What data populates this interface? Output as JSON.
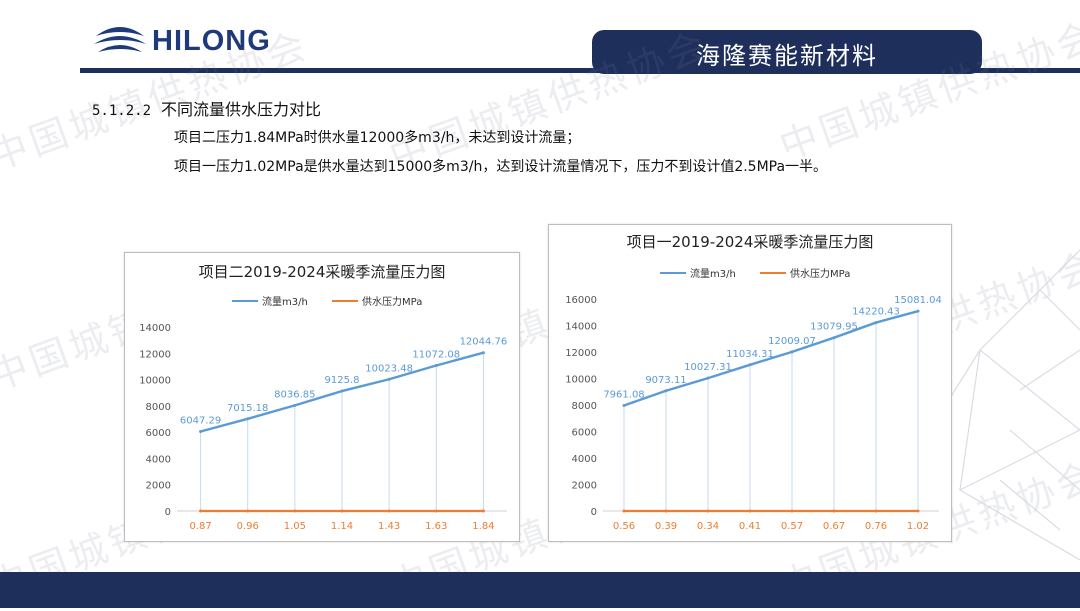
{
  "header": {
    "logo_text": "HILONG",
    "title": "海隆赛能新材料"
  },
  "section": {
    "number": "5.1.2.2",
    "heading": "不同流量供水压力对比",
    "line1": "项目二压力1.84MPa时供水量12000多m3/h，未达到设计流量；",
    "line2": "项目一压力1.02MPa是供水量达到15000多m3/h，达到设计流量情况下，压力不到设计值2.5MPa一半。"
  },
  "watermark": "中国城镇供热协会",
  "colors": {
    "navy": "#1f2f5c",
    "flow": "#5b9bd5",
    "pressure": "#ed7d31"
  },
  "chart_data": [
    {
      "type": "line",
      "title": "项目二2019-2024采暖季流量压力图",
      "categories": [
        "0.87",
        "0.96",
        "1.05",
        "1.14",
        "1.43",
        "1.63",
        "1.84"
      ],
      "series": [
        {
          "name": "流量m3/h",
          "values": [
            6047.29,
            7015.18,
            8036.85,
            9125.8,
            10023.48,
            11072.08,
            12044.76
          ]
        },
        {
          "name": "供水压力MPa",
          "values": [
            0.87,
            0.96,
            1.05,
            1.14,
            1.43,
            1.63,
            1.84
          ]
        }
      ],
      "value_labels": [
        "6047.29",
        "7015.18",
        "8036.85",
        "9125.8",
        "10023.48",
        "11072.08",
        "12044.76"
      ],
      "yticks": [
        "0",
        "2000",
        "4000",
        "6000",
        "8000",
        "10000",
        "12000",
        "14000"
      ],
      "ylim": [
        0,
        14000
      ],
      "legend": "top"
    },
    {
      "type": "line",
      "title": "项目一2019-2024采暖季流量压力图",
      "categories": [
        "0.56",
        "0.39",
        "0.34",
        "0.41",
        "0.57",
        "0.67",
        "0.76",
        "1.02"
      ],
      "series": [
        {
          "name": "流量m3/h",
          "values": [
            7961.08,
            9073.11,
            10027.31,
            11034.31,
            12009.07,
            13079.95,
            14220.43,
            15081.04
          ]
        },
        {
          "name": "供水压力MPa",
          "values": [
            0.56,
            0.39,
            0.34,
            0.41,
            0.57,
            0.67,
            0.76,
            1.02
          ]
        }
      ],
      "value_labels": [
        "7961.08",
        "9073.11",
        "10027.31",
        "11034.31",
        "12009.07",
        "13079.95",
        "14220.43",
        "15081.04"
      ],
      "yticks": [
        "0",
        "2000",
        "4000",
        "6000",
        "8000",
        "10000",
        "12000",
        "14000",
        "16000"
      ],
      "ylim": [
        0,
        16000
      ],
      "legend": "top"
    }
  ]
}
